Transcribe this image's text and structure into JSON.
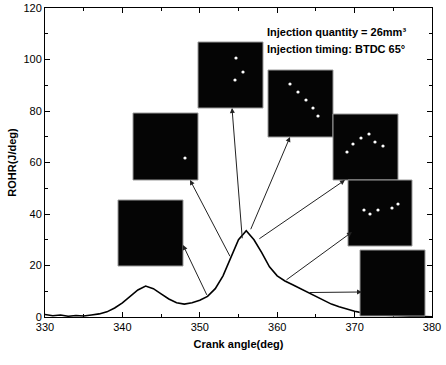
{
  "chart_data": {
    "type": "line",
    "x_label": "Crank angle(deg)",
    "y_label": "ROHR(J/deg)",
    "annotations": [
      "Injection quantity = 26mm³",
      "Injection timing: BTDC 65°"
    ],
    "x": [
      330,
      331,
      332,
      333,
      334,
      335,
      336,
      337,
      338,
      339,
      340,
      341,
      342,
      343,
      344,
      345,
      346,
      347,
      348,
      349,
      350,
      351,
      352,
      353,
      354,
      355,
      356,
      357,
      358,
      359,
      360,
      361,
      362,
      363,
      364,
      365,
      366,
      367,
      368,
      369,
      370,
      371,
      372,
      373,
      374,
      375,
      376,
      377,
      378,
      379,
      380
    ],
    "values": [
      1.0,
      0.5,
      0.8,
      0.3,
      0.6,
      0.4,
      0.8,
      1.2,
      2.0,
      3.5,
      5.5,
      8.0,
      10.5,
      12.0,
      11.0,
      9.0,
      7.0,
      5.5,
      5.0,
      5.5,
      6.5,
      8.0,
      11.0,
      16.0,
      23.0,
      30.0,
      33.5,
      30.0,
      25.0,
      19.5,
      16.0,
      14.0,
      12.5,
      11.0,
      9.5,
      8.0,
      6.5,
      5.0,
      4.0,
      3.0,
      2.2,
      1.6,
      1.2,
      0.9,
      0.7,
      0.5,
      0.4,
      0.3,
      0.2,
      0.2,
      0.1
    ],
    "color": "#000000",
    "xlim": [
      330,
      380
    ],
    "ylim": [
      0,
      120
    ],
    "xticks": [
      330,
      340,
      350,
      360,
      370,
      380
    ],
    "yticks": [
      0,
      20,
      40,
      60,
      80,
      100,
      120
    ],
    "grid": false
  }
}
